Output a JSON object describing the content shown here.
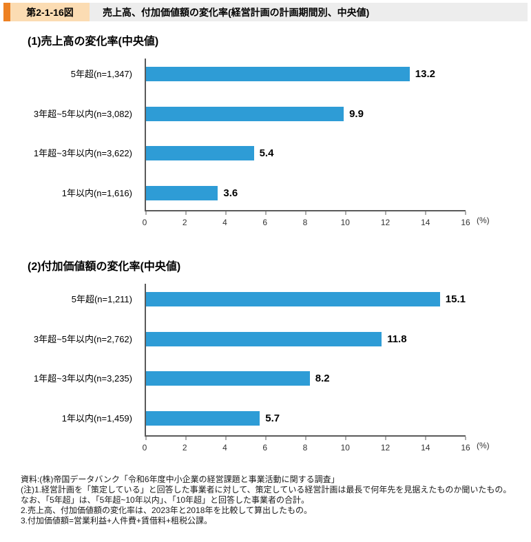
{
  "header": {
    "figure_number": "第2-1-16図",
    "title": "売上高、付加価値額の変化率(経営計画の計画期間別、中央値)"
  },
  "sections": [
    {
      "title": "(1)売上高の変化率(中央値)"
    },
    {
      "title": "(2)付加価値額の変化率(中央値)"
    }
  ],
  "chart_data": [
    {
      "type": "bar",
      "orientation": "horizontal",
      "title": "(1)売上高の変化率(中央値)",
      "categories": [
        "5年超(n=1,347)",
        "3年超~5年以内(n=3,082)",
        "1年超~3年以内(n=3,622)",
        "1年以内(n=1,616)"
      ],
      "values": [
        13.2,
        9.9,
        5.4,
        3.6
      ],
      "xlim": [
        0,
        16
      ],
      "xtick_step": 2,
      "unit": "(%)",
      "grid": false,
      "legend": false
    },
    {
      "type": "bar",
      "orientation": "horizontal",
      "title": "(2)付加価値額の変化率(中央値)",
      "categories": [
        "5年超(n=1,211)",
        "3年超~5年以内(n=2,762)",
        "1年超~3年以内(n=3,235)",
        "1年以内(n=1,459)"
      ],
      "values": [
        15.1,
        11.8,
        8.2,
        5.7
      ],
      "xlim": [
        0,
        16
      ],
      "xtick_step": 2,
      "unit": "(%)",
      "grid": false,
      "legend": false
    }
  ],
  "notes": [
    "資料:(株)帝国データバンク「令和6年度中小企業の経営課題と事業活動に関する調査」",
    "(注)1.経営計画を「策定している」と回答した事業者に対して、策定している経営計画は最長で何年先を見据えたものか聞いたもの。",
    "なお、「5年超」は、「5年超~10年以内」、「10年超」と回答した事業者の合計。",
    "2.売上高、付加価値額の変化率は、2023年と2018年を比較して算出したもの。",
    "3.付加価値額=営業利益+人件費+賃借料+租税公課。"
  ],
  "colors": {
    "bar": "#2E9CD6",
    "axis": "#595959",
    "header_bg": "#EDEDED",
    "header_accent": "#ED8123",
    "badge_bg": "#FBDCB3"
  }
}
